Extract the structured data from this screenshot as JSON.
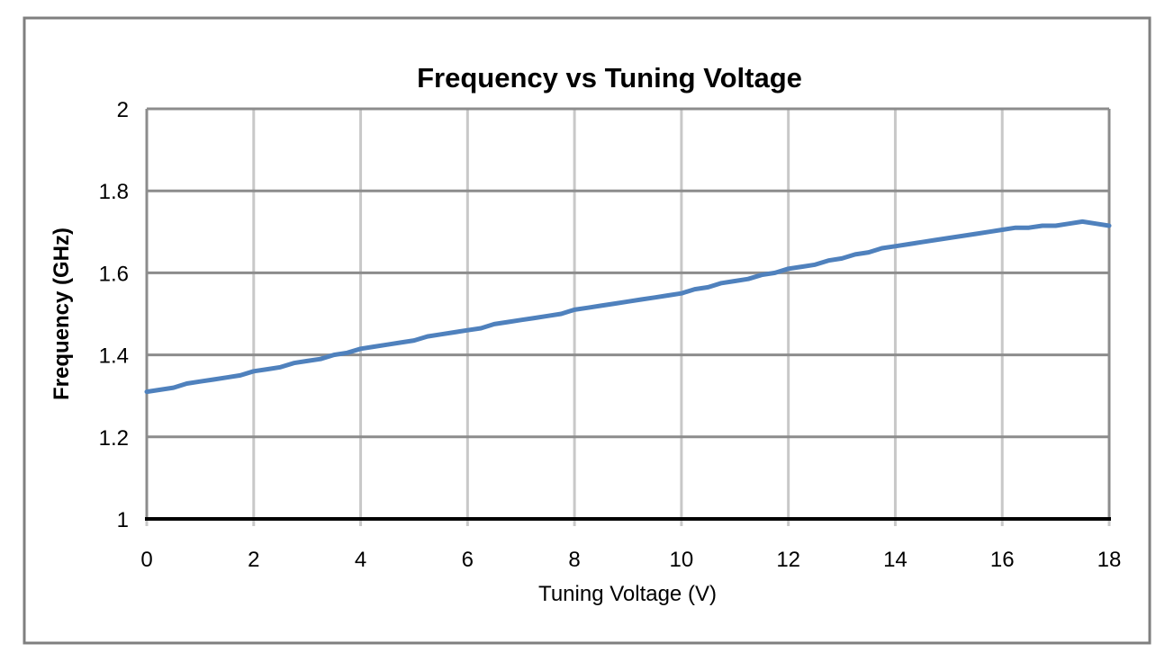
{
  "chart_data": {
    "type": "line",
    "title": "Frequency vs Tuning Voltage",
    "xlabel": "Tuning Voltage (V)",
    "ylabel": "Frequency (GHz)",
    "xlim": [
      0,
      18
    ],
    "ylim": [
      1,
      2
    ],
    "x_ticks": [
      0,
      2,
      4,
      6,
      8,
      10,
      12,
      14,
      16,
      18
    ],
    "x_tick_labels": [
      "0",
      "2",
      "4",
      "6",
      "8",
      "10",
      "12",
      "14",
      "16",
      "18"
    ],
    "y_ticks": [
      1,
      1.2,
      1.4,
      1.6,
      1.8,
      2
    ],
    "y_tick_labels": [
      "1",
      "1.2",
      "1.4",
      "1.6",
      "1.8",
      "2"
    ],
    "grid": true,
    "legend": false,
    "series": [
      {
        "name": "Frequency",
        "color": "#4F81BD",
        "x": [
          0,
          0.25,
          0.5,
          0.75,
          1,
          1.25,
          1.5,
          1.75,
          2,
          2.25,
          2.5,
          2.75,
          3,
          3.25,
          3.5,
          3.75,
          4,
          4.25,
          4.5,
          4.75,
          5,
          5.25,
          5.5,
          5.75,
          6,
          6.25,
          6.5,
          6.75,
          7,
          7.25,
          7.5,
          7.75,
          8,
          8.25,
          8.5,
          8.75,
          9,
          9.25,
          9.5,
          9.75,
          10,
          10.25,
          10.5,
          10.75,
          11,
          11.25,
          11.5,
          11.75,
          12,
          12.25,
          12.5,
          12.75,
          13,
          13.25,
          13.5,
          13.75,
          14,
          14.25,
          14.5,
          14.75,
          15,
          15.25,
          15.5,
          15.75,
          16,
          16.25,
          16.5,
          16.75,
          17,
          17.25,
          17.5,
          17.75,
          18
        ],
        "y": [
          1.31,
          1.315,
          1.32,
          1.33,
          1.335,
          1.34,
          1.345,
          1.35,
          1.36,
          1.365,
          1.37,
          1.38,
          1.385,
          1.39,
          1.4,
          1.405,
          1.415,
          1.42,
          1.425,
          1.43,
          1.435,
          1.445,
          1.45,
          1.455,
          1.46,
          1.465,
          1.475,
          1.48,
          1.485,
          1.49,
          1.495,
          1.5,
          1.51,
          1.515,
          1.52,
          1.525,
          1.53,
          1.535,
          1.54,
          1.545,
          1.55,
          1.56,
          1.565,
          1.575,
          1.58,
          1.585,
          1.595,
          1.6,
          1.61,
          1.615,
          1.62,
          1.63,
          1.635,
          1.645,
          1.65,
          1.66,
          1.665,
          1.67,
          1.675,
          1.68,
          1.685,
          1.69,
          1.695,
          1.7,
          1.705,
          1.71,
          1.71,
          1.715,
          1.715,
          1.72,
          1.725,
          1.72,
          1.715
        ]
      }
    ]
  },
  "colors": {
    "series_line": "#4F81BD",
    "gridline_horizontal": "#8C8C8C",
    "gridline_vertical": "#C8C8C8",
    "plot_edge": "#8C8C8C",
    "axis_line": "#000000",
    "outer_border": "#7F7F7F",
    "background": "#FFFFFF",
    "text": "#000000"
  }
}
